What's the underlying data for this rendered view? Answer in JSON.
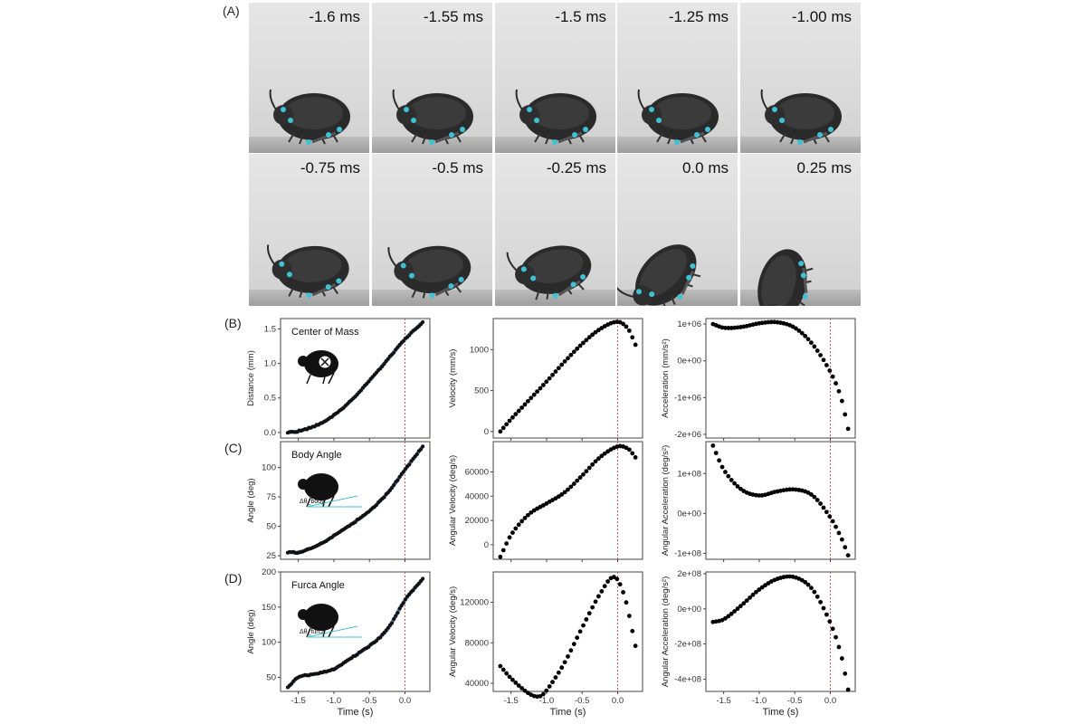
{
  "panel_A": {
    "label": "(A)",
    "frames_row1": [
      "-1.6 ms",
      "-1.55 ms",
      "-1.5 ms",
      "-1.25 ms",
      "-1.00 ms"
    ],
    "frames_row2": [
      "-0.75 ms",
      "-0.5 ms",
      "-0.25 ms",
      "0.0 ms",
      "0.25 ms"
    ],
    "highlighted_frame": "0.0 ms",
    "highlight_color": "#d9534f",
    "marker_color": "#3fc1d6"
  },
  "panel_labels": [
    "(B)",
    "(C)",
    "(D)"
  ],
  "row_titles": [
    "Center of Mass",
    "Body Angle",
    "Furca Angle"
  ],
  "inset_angle_labels": [
    "",
    "Δθ_body",
    "Δθ_furca"
  ],
  "x_label": "Time (s)",
  "chart_data": [
    {
      "type": "scatter",
      "panel": "B",
      "title": "Center of Mass",
      "xlabel": "",
      "ylabel": "Distance (mm)",
      "xlim": [
        -1.75,
        0.35
      ],
      "ylim": [
        -0.08,
        1.65
      ],
      "yticks": [
        0,
        0.5,
        1,
        1.5
      ],
      "ytick_labels": [
        "0.0",
        "0.5",
        "1.0",
        "1.5"
      ],
      "x": [
        -1.65,
        -1.5,
        -1.25,
        -1.0,
        -0.75,
        -0.5,
        -0.25,
        0.0,
        0.25
      ],
      "y": [
        0.0,
        0.02,
        0.1,
        0.25,
        0.47,
        0.75,
        1.05,
        1.35,
        1.6
      ],
      "fit_line_color": "#3b5b9a",
      "dashed_line_x": 0.0
    },
    {
      "type": "scatter",
      "panel": "B",
      "ylabel": "Velocity (mm/s)",
      "xlim": [
        -1.75,
        0.35
      ],
      "ylim": [
        -80,
        1380
      ],
      "yticks": [
        0,
        500,
        1000
      ],
      "ytick_labels": [
        "0",
        "500",
        "1000"
      ],
      "x": [
        -1.65,
        -1.5,
        -1.25,
        -1.0,
        -0.75,
        -0.5,
        -0.25,
        0.0,
        0.15,
        0.25
      ],
      "y": [
        0,
        150,
        380,
        610,
        850,
        1070,
        1250,
        1340,
        1250,
        1060
      ]
    },
    {
      "type": "scatter",
      "panel": "B",
      "ylabel": "Acceleration (mm/s²)",
      "xlim": [
        -1.75,
        0.35
      ],
      "ylim": [
        -2100000.0,
        1150000.0
      ],
      "yticks": [
        1000000.0,
        0,
        -1000000.0,
        -2000000.0
      ],
      "ytick_labels": [
        "1e+06",
        "0e+00",
        "-1e+06",
        "-2e+06"
      ],
      "x": [
        -1.65,
        -1.5,
        -1.25,
        -1.0,
        -0.75,
        -0.5,
        -0.25,
        0.0,
        0.15,
        0.25
      ],
      "y": [
        1000000.0,
        900000.0,
        920000.0,
        1020000.0,
        1050000.0,
        900000.0,
        450000.0,
        -300000.0,
        -1000000.0,
        -1850000.0
      ]
    },
    {
      "type": "scatter",
      "panel": "C",
      "title": "Body Angle",
      "ylabel": "Angle (deg)",
      "xlim": [
        -1.75,
        0.35
      ],
      "ylim": [
        22,
        122
      ],
      "yticks": [
        25,
        50,
        75,
        100
      ],
      "ytick_labels": [
        "25",
        "50",
        "75",
        "100"
      ],
      "x": [
        -1.65,
        -1.5,
        -1.25,
        -1.0,
        -0.75,
        -0.5,
        -0.25,
        0.0,
        0.25
      ],
      "y": [
        28,
        28,
        33,
        42,
        52,
        63,
        78,
        98,
        118
      ],
      "fit_line_color": "#3b5b9a",
      "dashed_line_x": 0.0
    },
    {
      "type": "scatter",
      "panel": "C",
      "ylabel": "Angular Velocity (deg/s)",
      "xlim": [
        -1.75,
        0.35
      ],
      "ylim": [
        -12000,
        85000
      ],
      "yticks": [
        0,
        20000,
        40000,
        60000
      ],
      "ytick_labels": [
        "0",
        "20000",
        "40000",
        "60000"
      ],
      "x": [
        -1.65,
        -1.5,
        -1.25,
        -1.0,
        -0.75,
        -0.5,
        -0.25,
        0.0,
        0.15,
        0.25
      ],
      "y": [
        -10000,
        8000,
        25000,
        34000,
        43000,
        57000,
        72000,
        81000,
        79000,
        72000
      ]
    },
    {
      "type": "scatter",
      "panel": "C",
      "ylabel": "Angular Acceleration (deg/s²)",
      "xlim": [
        -1.75,
        0.35
      ],
      "ylim": [
        -115000000.0,
        180000000.0
      ],
      "yticks": [
        100000000.0,
        0,
        -100000000.0
      ],
      "ytick_labels": [
        "1e+08",
        "0e+00",
        "-1e+08"
      ],
      "x": [
        -1.65,
        -1.5,
        -1.25,
        -1.0,
        -0.75,
        -0.5,
        -0.25,
        0.0,
        0.15,
        0.25
      ],
      "y": [
        170000000.0,
        110000000.0,
        60000000.0,
        45000000.0,
        55000000.0,
        60000000.0,
        45000000.0,
        -10000000.0,
        -60000000.0,
        -105000000.0
      ]
    },
    {
      "type": "scatter",
      "panel": "D",
      "title": "Furca Angle",
      "ylabel": "Angle (deg)",
      "xlim": [
        -1.75,
        0.35
      ],
      "ylim": [
        30,
        200
      ],
      "yticks": [
        50,
        100,
        150,
        200
      ],
      "ytick_labels": [
        "50",
        "100",
        "150",
        "200"
      ],
      "x": [
        -1.65,
        -1.5,
        -1.25,
        -1.0,
        -0.75,
        -0.5,
        -0.25,
        0.0,
        0.25
      ],
      "y": [
        35,
        50,
        55,
        62,
        78,
        95,
        118,
        160,
        190
      ],
      "fit_line_color": "#3b5b9a",
      "dashed_line_x": 0.0
    },
    {
      "type": "scatter",
      "panel": "D",
      "ylabel": "Angular Velocity (deg/s)",
      "xlim": [
        -1.75,
        0.35
      ],
      "ylim": [
        32000,
        150000
      ],
      "yticks": [
        40000,
        80000,
        120000
      ],
      "ytick_labels": [
        "40000",
        "80000",
        "120000"
      ],
      "x": [
        -1.65,
        -1.5,
        -1.25,
        -1.1,
        -1.0,
        -0.75,
        -0.5,
        -0.25,
        -0.05,
        0.1,
        0.25
      ],
      "y": [
        57000,
        45000,
        30000,
        27000,
        33000,
        60000,
        95000,
        128000,
        145000,
        125000,
        77000
      ]
    },
    {
      "type": "scatter",
      "panel": "D",
      "ylabel": "Angular Acceleration (deg/s²)",
      "xlim": [
        -1.75,
        0.35
      ],
      "ylim": [
        -470000000.0,
        210000000.0
      ],
      "yticks": [
        200000000.0,
        0,
        -200000000.0,
        -400000000.0
      ],
      "ytick_labels": [
        "2e+08",
        "0e+00",
        "-2e+08",
        "-4e+08"
      ],
      "x": [
        -1.65,
        -1.5,
        -1.25,
        -1.0,
        -0.75,
        -0.5,
        -0.25,
        0.0,
        0.15,
        0.25
      ],
      "y": [
        -75000000.0,
        -60000000.0,
        20000000.0,
        110000000.0,
        170000000.0,
        180000000.0,
        110000000.0,
        -80000000.0,
        -260000000.0,
        -460000000.0
      ]
    }
  ],
  "x_ticks": [
    -1.5,
    -1.0,
    -0.5,
    0.0
  ],
  "x_tick_labels": [
    "-1.5",
    "-1.0",
    "-0.5",
    "0.0"
  ]
}
